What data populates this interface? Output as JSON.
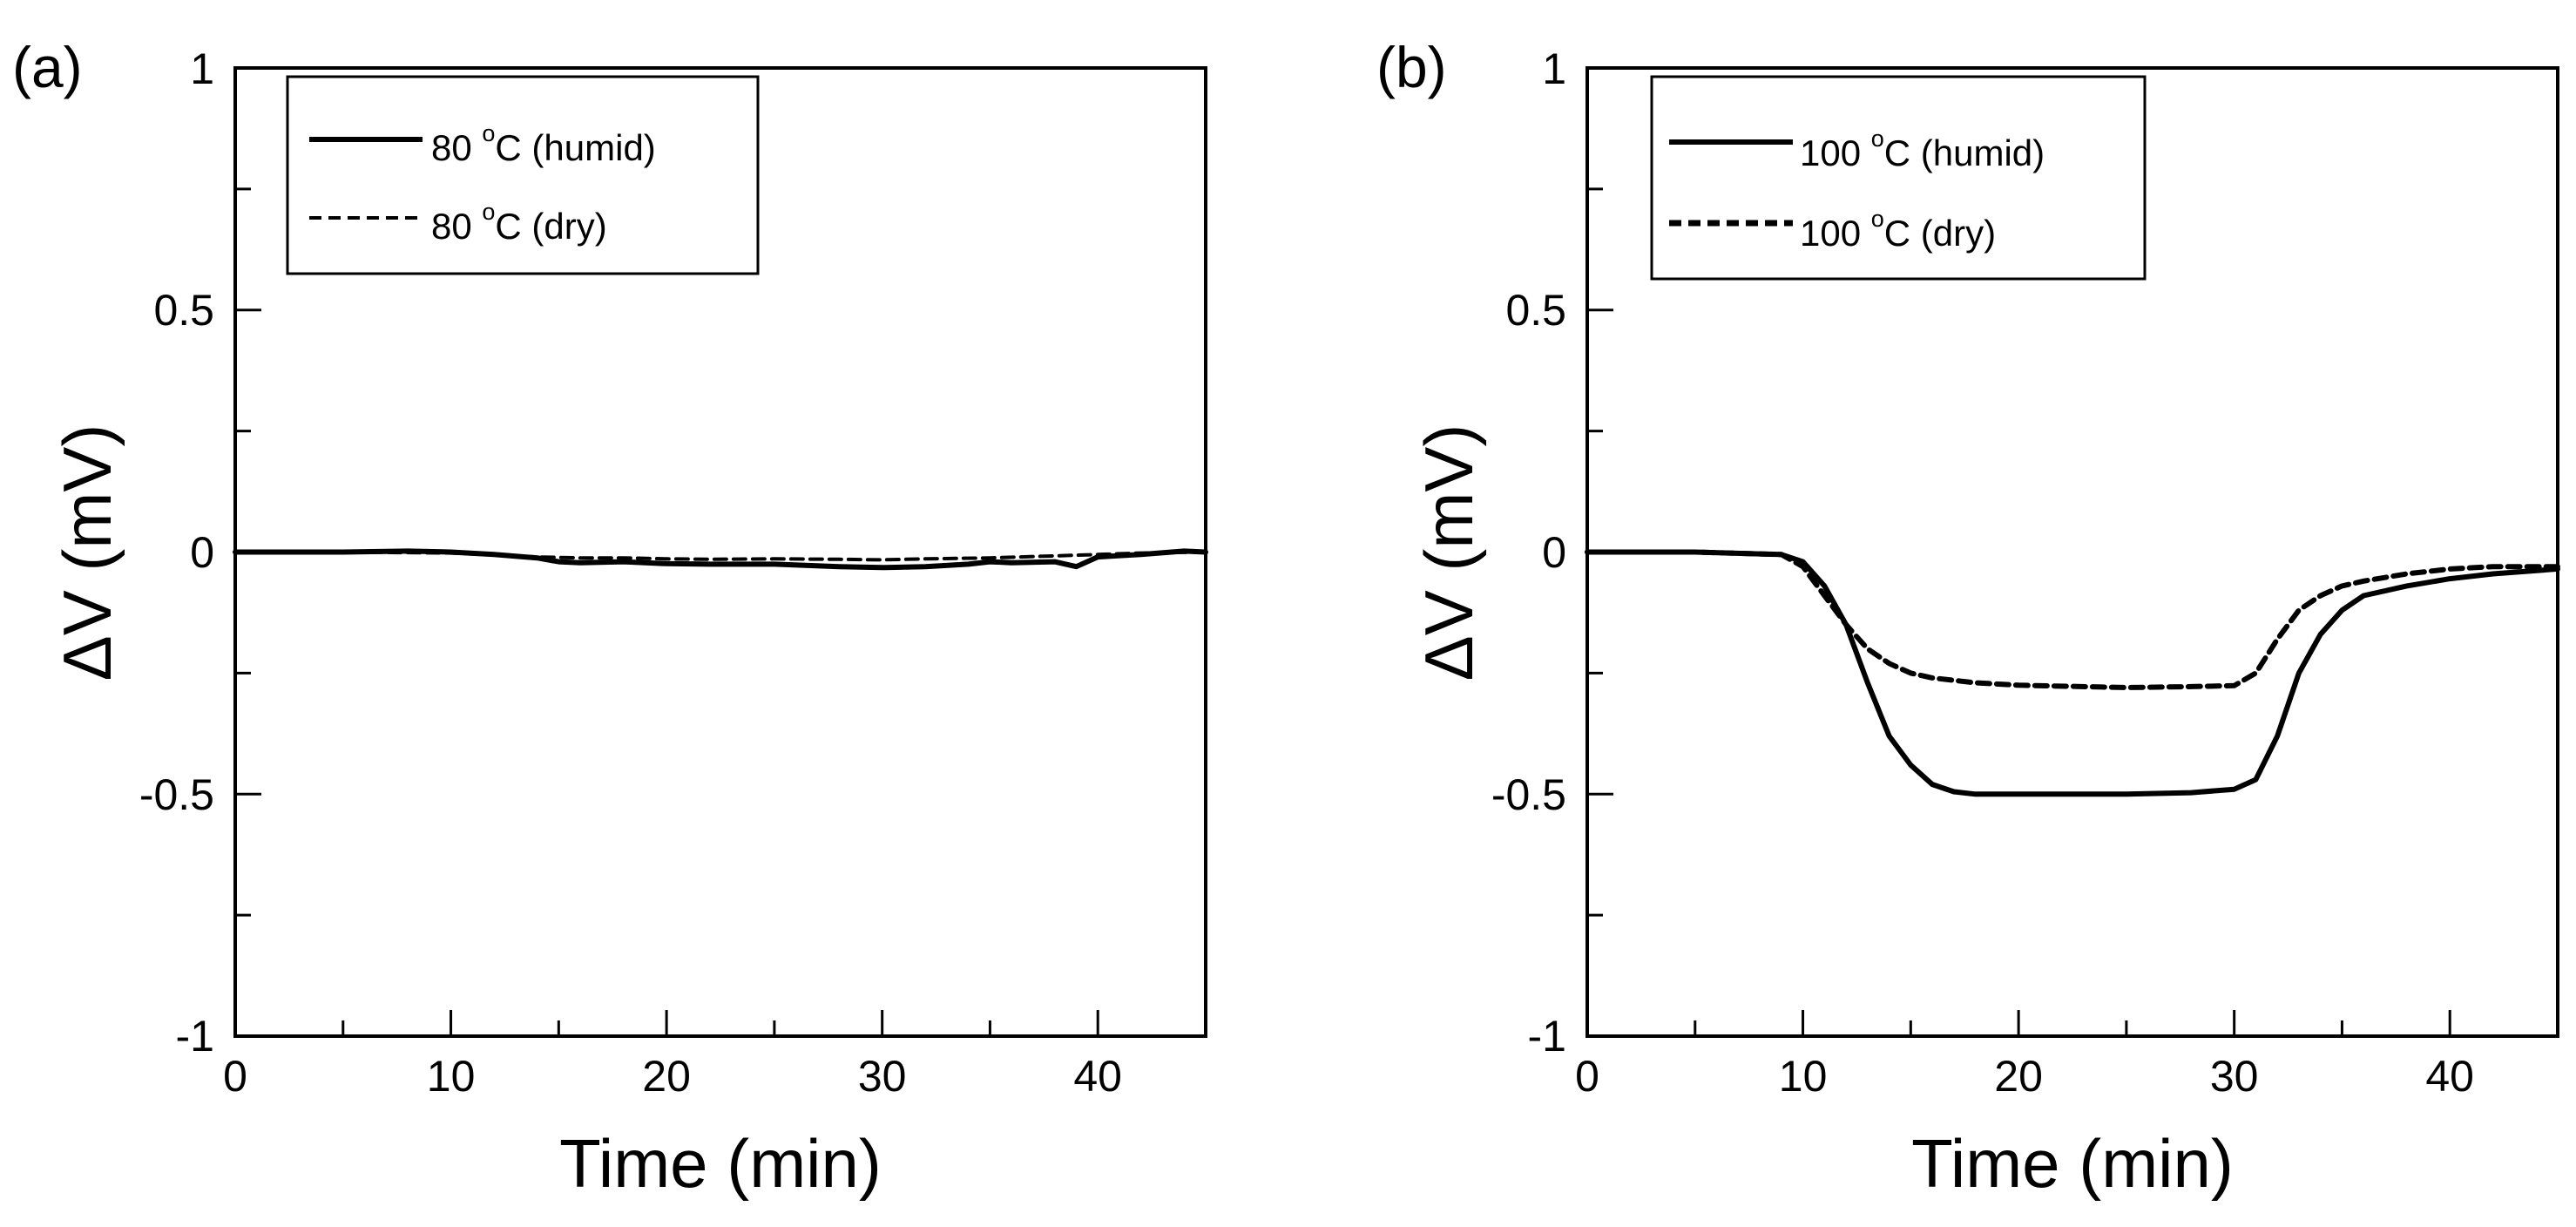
{
  "chart_data": [
    {
      "panel_label": "(a)",
      "type": "line",
      "xlabel": "Time (min)",
      "ylabel": "ΔV (mV)",
      "xlim": [
        0,
        45
      ],
      "ylim": [
        -1,
        1
      ],
      "xticks": [
        0,
        10,
        20,
        30,
        40
      ],
      "xtick_labels": [
        "0",
        "10",
        "20",
        "30",
        "40"
      ],
      "yticks": [
        -1,
        -0.5,
        0,
        0.5,
        1
      ],
      "ytick_labels": [
        "-1",
        "-0.5",
        "0",
        "0.5",
        "1"
      ],
      "grid": false,
      "legend_position": "top-left",
      "series": [
        {
          "name": "80 °C (humid)",
          "legend": {
            "value": "80 ",
            "sup": "o",
            "rest": "C (humid)"
          },
          "style": "solid",
          "x": [
            0,
            5,
            8,
            10,
            12,
            14,
            15,
            16,
            18,
            20,
            22,
            25,
            28,
            30,
            32,
            34,
            35,
            36,
            38,
            39,
            40,
            42,
            44,
            45
          ],
          "y": [
            0.0,
            0.0,
            0.002,
            0.0,
            -0.005,
            -0.012,
            -0.02,
            -0.022,
            -0.02,
            -0.024,
            -0.025,
            -0.025,
            -0.03,
            -0.032,
            -0.03,
            -0.025,
            -0.02,
            -0.022,
            -0.02,
            -0.03,
            -0.01,
            -0.005,
            0.002,
            0.0
          ]
        },
        {
          "name": "80 °C (dry)",
          "legend": {
            "value": "80 ",
            "sup": "o",
            "rest": "C (dry)"
          },
          "style": "dashed",
          "x": [
            0,
            5,
            10,
            12,
            14,
            16,
            18,
            20,
            22,
            25,
            28,
            30,
            32,
            35,
            38,
            40,
            42,
            45
          ],
          "y": [
            0.0,
            0.0,
            -0.002,
            -0.006,
            -0.01,
            -0.012,
            -0.012,
            -0.014,
            -0.015,
            -0.014,
            -0.015,
            -0.016,
            -0.014,
            -0.012,
            -0.008,
            -0.005,
            -0.002,
            0.0
          ]
        }
      ]
    },
    {
      "panel_label": "(b)",
      "type": "line",
      "xlabel": "Time (min)",
      "ylabel": "ΔV (mV)",
      "xlim": [
        0,
        45
      ],
      "ylim": [
        -1,
        1
      ],
      "xticks": [
        0,
        10,
        20,
        30,
        40
      ],
      "xtick_labels": [
        "0",
        "10",
        "20",
        "30",
        "40"
      ],
      "yticks": [
        -1,
        -0.5,
        0,
        0.5,
        1
      ],
      "ytick_labels": [
        "-1",
        "-0.5",
        "0",
        "0.5",
        "1"
      ],
      "grid": false,
      "legend_position": "top-left",
      "series": [
        {
          "name": "100 °C (humid)",
          "legend": {
            "value": "100 ",
            "sup": "o",
            "rest": "C (humid)"
          },
          "style": "solid",
          "x": [
            0,
            5,
            9,
            10,
            11,
            12,
            13,
            14,
            15,
            16,
            17,
            18,
            20,
            25,
            28,
            30,
            31,
            32,
            33,
            34,
            35,
            36,
            38,
            40,
            42,
            45
          ],
          "y": [
            0.0,
            0.0,
            -0.005,
            -0.02,
            -0.07,
            -0.15,
            -0.27,
            -0.38,
            -0.44,
            -0.48,
            -0.495,
            -0.5,
            -0.5,
            -0.5,
            -0.497,
            -0.49,
            -0.47,
            -0.38,
            -0.25,
            -0.17,
            -0.12,
            -0.09,
            -0.07,
            -0.055,
            -0.045,
            -0.035
          ]
        },
        {
          "name": "100 °C (dry)",
          "legend": {
            "value": "100 ",
            "sup": "o",
            "rest": "C (dry)"
          },
          "style": "dashed",
          "x": [
            0,
            5,
            9,
            10,
            11,
            12,
            13,
            14,
            15,
            16,
            17,
            18,
            20,
            25,
            28,
            30,
            31,
            32,
            33,
            34,
            35,
            36,
            38,
            40,
            42,
            45
          ],
          "y": [
            0.0,
            0.0,
            -0.005,
            -0.03,
            -0.09,
            -0.15,
            -0.2,
            -0.23,
            -0.25,
            -0.26,
            -0.265,
            -0.27,
            -0.275,
            -0.28,
            -0.278,
            -0.276,
            -0.25,
            -0.18,
            -0.12,
            -0.09,
            -0.07,
            -0.06,
            -0.045,
            -0.035,
            -0.03,
            -0.03
          ]
        }
      ]
    }
  ]
}
